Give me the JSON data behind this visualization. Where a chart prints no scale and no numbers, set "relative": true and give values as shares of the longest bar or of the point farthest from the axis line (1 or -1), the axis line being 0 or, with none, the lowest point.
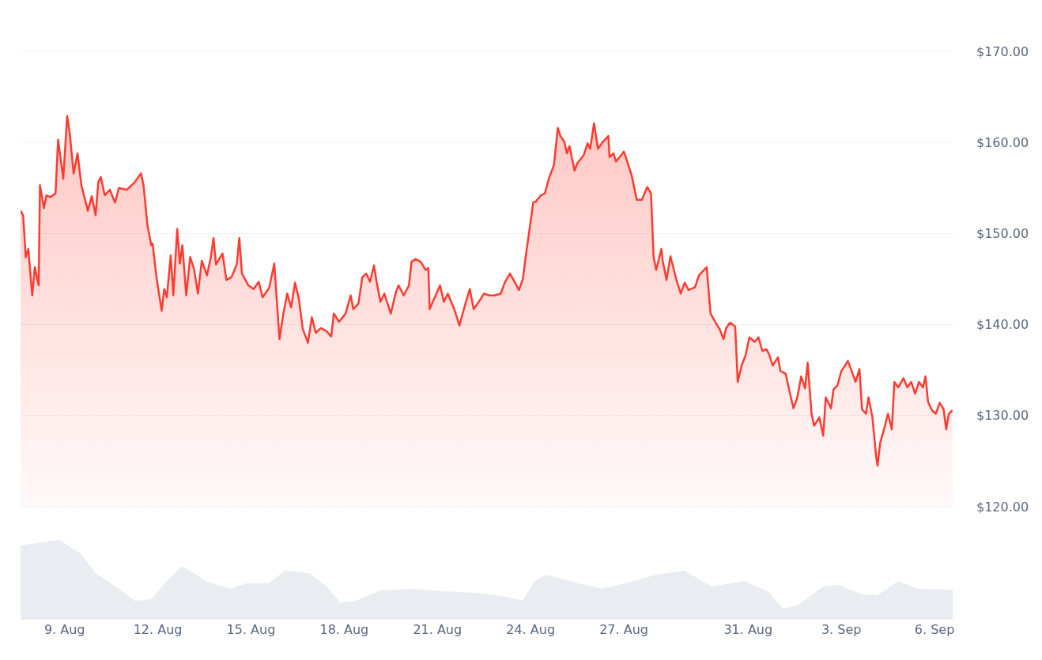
{
  "chart_data": [
    {
      "type": "area",
      "x": [
        "--08-07T14:00",
        "--08-07T16:00",
        "--08-07T18:00",
        "--08-07T20:00",
        "--08-07T23:00",
        "--08-08T01:00",
        "--08-08T04:00",
        "--08-08T05:00",
        "--08-08T08:00",
        "--08-08T10:00",
        "--08-08T13:00",
        "--08-08T17:00",
        "--08-08T19:00",
        "--08-08T22:00",
        "--08-08T23:00",
        "--08-09T02:00",
        "--08-09T04:00",
        "--08-09T07:00",
        "--08-09T10:00",
        "--08-09T13:00",
        "--08-09T18:00",
        "--08-09T21:00",
        "--08-10T00:00",
        "--08-10T02:00",
        "--08-10T04:00",
        "--08-10T07:00",
        "--08-10T11:00",
        "--08-10T15:00",
        "--08-10T18:00",
        "--08-11T00:00",
        "--08-11T06:00",
        "--08-11T11:00",
        "--08-11T13:00",
        "--08-11T16:00",
        "--08-11T19:00",
        "--08-11T20:00",
        "--08-11T23:00",
        "--08-12T03:00",
        "--08-12T05:00",
        "--08-12T07:00",
        "--08-12T10:00",
        "--08-12T12:00",
        "--08-12T15:00",
        "--08-12T17:00",
        "--08-12T19:00",
        "--08-12T22:00",
        "--08-13T01:00",
        "--08-13T04:00",
        "--08-13T07:00",
        "--08-13T10:00",
        "--08-13T14:00",
        "--08-13T17:00",
        "--08-13T19:00",
        "--08-13T21:00",
        "--08-14T02:00",
        "--08-14T05:00",
        "--08-14T09:00",
        "--08-14T13:00",
        "--08-14T15:00",
        "--08-14T17:00",
        "--08-14T22:00",
        "--08-15T02:00",
        "--08-15T06:00",
        "--08-15T09:00",
        "--08-15T14:00",
        "--08-15T18:00",
        "--08-15T22:00",
        "--08-16T01:00",
        "--08-16T04:00",
        "--08-16T07:00",
        "--08-16T10:00",
        "--08-16T13:00",
        "--08-16T16:00",
        "--08-16T20:00",
        "--08-16T23:00",
        "--08-17T02:00",
        "--08-17T06:00",
        "--08-17T10:00",
        "--08-17T14:00",
        "--08-17T16:00",
        "--08-17T20:00",
        "--08-18T01:00",
        "--08-18T05:00",
        "--08-18T07:00",
        "--08-18T11:00",
        "--08-18T14:00",
        "--08-18T17:00",
        "--08-18T20:00",
        "--08-18T23:00",
        "--08-19T01:00",
        "--08-19T04:00",
        "--08-19T07:00",
        "--08-19T12:00",
        "--08-19T16:00",
        "--08-19T18:00",
        "--08-19T22:00",
        "--08-20T02:00",
        "--08-20T04:00",
        "--08-20T07:00",
        "--08-20T11:00",
        "--08-20T15:00",
        "--08-20T17:00",
        "--08-20T18:00",
        "--08-20T22:00",
        "--08-21T02:00",
        "--08-21T05:00",
        "--08-21T08:00",
        "--08-21T13:00",
        "--08-21T17:00",
        "--08-21T22:00",
        "--08-22T01:00",
        "--08-22T04:00",
        "--08-22T08:00",
        "--08-22T12:00",
        "--08-22T16:00",
        "--08-22T20:00",
        "--08-23T01:00",
        "--08-23T04:00",
        "--08-23T08:00",
        "--08-23T12:00",
        "--08-23T15:00",
        "--08-23T18:00",
        "--08-23T21:00",
        "--08-24T00:00",
        "--08-24T02:00",
        "--08-24T04:00",
        "--08-24T08:00",
        "--08-24T11:00",
        "--08-24T14:00",
        "--08-24T18:00",
        "--08-24T21:00",
        "--08-24T23:00",
        "--08-25T02:00",
        "--08-25T04:00",
        "--08-25T06:00",
        "--08-25T10:00",
        "--08-25T12:00",
        "--08-25T17:00",
        "--08-25T20:00",
        "--08-25T22:00",
        "--08-26T01:00",
        "--08-26T04:00",
        "--08-26T08:00",
        "--08-26T12:00",
        "--08-26T13:00",
        "--08-26T16:00",
        "--08-26T18:00",
        "--08-26T22:00",
        "--08-27T00:00",
        "--08-27T02:00",
        "--08-27T06:00",
        "--08-27T10:00",
        "--08-27T14:00",
        "--08-27T18:00",
        "--08-27T21:00",
        "--08-27T23:00",
        "--08-28T01:00",
        "--08-28T05:00",
        "--08-28T06:00",
        "--08-28T09:00",
        "--08-28T12:00",
        "--08-28T17:00",
        "--08-28T20:00",
        "--08-28T23:00",
        "--08-29T02:00",
        "--08-29T07:00",
        "--08-29T10:00",
        "--08-29T16:00",
        "--08-29T19:00",
        "--08-29T23:00",
        "--08-30T02:00",
        "--08-30T05:00",
        "--08-30T07:00",
        "--08-30T10:00",
        "--08-30T14:00",
        "--08-30T16:00",
        "--08-30T19:00",
        "--08-30T22:00",
        "--08-31T01:00",
        "--08-31T05:00",
        "--08-31T08:00",
        "--08-31T11:00",
        "--08-31T14:00",
        "--08-31T16:00",
        "--08-31T19:00",
        "--08-31T23:00",
        "--09-01T01:00",
        "--09-01T05:00",
        "--09-01T07:00",
        "--09-01T11:00",
        "--09-01T14:00",
        "--09-01T17:00",
        "--09-01T20:00",
        "--09-01T22:00",
        "--09-02T01:00",
        "--09-02T03:00",
        "--09-02T07:00",
        "--09-02T10:00",
        "--09-02T12:00",
        "--09-02T16:00",
        "--09-02T18:00",
        "--09-02T21:00",
        "--09-03T00:00",
        "--09-03T03:00",
        "--09-03T05:00",
        "--09-03T08:00",
        "--09-03T11:00",
        "--09-03T14:00",
        "--09-03T16:00",
        "--09-03T19:00",
        "--09-03T21:00",
        "--09-04T00:00",
        "--09-04T03:00",
        "--09-04T04:00",
        "--09-04T06:00",
        "--09-04T09:00",
        "--09-04T12:00",
        "--09-04T15:00",
        "--09-04T17:00",
        "--09-04T20:00",
        "--09-05T00:00",
        "--09-05T03:00",
        "--09-05T06:00",
        "--09-05T09:00",
        "--09-05T12:00",
        "--09-05T15:00",
        "--09-05T17:00",
        "--09-05T19:00",
        "--09-05T22:00",
        "--09-06T01:00",
        "--09-06T04:00",
        "--09-06T07:00",
        "--09-06T09:00",
        "--09-06T11:00",
        "--09-06T14:00"
      ],
      "series": [
        {
          "color": "#ff3b30",
          "values": [
            152.5,
            152,
            147.4,
            148.3,
            143.2,
            146.3,
            144.3,
            155.3,
            152.8,
            154.2,
            154,
            154.4,
            160.3,
            157.1,
            156,
            162.9,
            161,
            156.6,
            158.8,
            155.3,
            152.5,
            154.1,
            152,
            155.6,
            156.2,
            154.2,
            154.8,
            153.4,
            155,
            154.8,
            155.6,
            156.6,
            155.3,
            150.9,
            148.7,
            148.9,
            145.2,
            141.5,
            143.9,
            143,
            147.6,
            143.2,
            150.5,
            146.7,
            148.7,
            143.2,
            147.4,
            146.1,
            143.4,
            147,
            145.4,
            147.4,
            149.5,
            146.6,
            147.8,
            144.9,
            145.2,
            146.6,
            149.5,
            145.6,
            144.3,
            143.9,
            144.7,
            143,
            144,
            146.7,
            138.4,
            141.2,
            143.4,
            141.9,
            144.6,
            142.8,
            139.5,
            138,
            140.8,
            139.1,
            139.6,
            139.3,
            138.7,
            141.2,
            140.3,
            141.2,
            143.2,
            141.7,
            142.3,
            145.2,
            145.6,
            144.7,
            146.5,
            144.7,
            142.5,
            143.4,
            141.2,
            143.6,
            144.3,
            143.2,
            144.3,
            146.9,
            147.2,
            146.9,
            146,
            146.2,
            141.7,
            143,
            144.3,
            142.5,
            143.4,
            141.7,
            139.9,
            142.5,
            143.9,
            141.7,
            142.5,
            143.4,
            143.2,
            143.2,
            143.4,
            144.6,
            145.6,
            144.6,
            143.8,
            145,
            148.3,
            151.3,
            153.4,
            153.5,
            154.2,
            154.4,
            156,
            157.5,
            161.6,
            160.7,
            160.1,
            158.8,
            159.6,
            156.9,
            157.7,
            158.6,
            159.9,
            159.3,
            162.1,
            159.3,
            160.1,
            160.7,
            158.4,
            158.8,
            157.9,
            158.6,
            159,
            158.2,
            156.4,
            153.7,
            153.7,
            155.1,
            154.4,
            147.4,
            146,
            148.3,
            147,
            144.9,
            147.5,
            144.7,
            143.4,
            144.6,
            143.8,
            144.1,
            145.4,
            146.3,
            141.2,
            140.2,
            139.5,
            138.4,
            139.6,
            140.2,
            139.8,
            133.7,
            135.5,
            136.6,
            138.6,
            138.1,
            138.6,
            137.1,
            137.3,
            136.8,
            135.5,
            136.4,
            134.9,
            134.6,
            133.3,
            130.8,
            132,
            134.3,
            133,
            135.8,
            130.2,
            128.9,
            129.8,
            127.8,
            132,
            130.8,
            132.9,
            133.3,
            134.9,
            135.5,
            136,
            134.9,
            133.7,
            135.1,
            130.7,
            130.2,
            132,
            129.8,
            125.4,
            124.5,
            127,
            128.5,
            130.2,
            128.5,
            133.7,
            133.1,
            134.1,
            133.1,
            133.7,
            132.4,
            133.7,
            133.1,
            134.3,
            131.5,
            130.6,
            130.2,
            131.4,
            130.7,
            128.5,
            130.2,
            130.6
          ]
        }
      ],
      "xlim": [
        "--08-07T14:00",
        "--09-06T14:00"
      ],
      "ylim": [
        120,
        170
      ],
      "yticks": [
        {
          "value": 120,
          "label": "$120.00"
        },
        {
          "value": 130,
          "label": "$130.00"
        },
        {
          "value": 140,
          "label": "$140.00"
        },
        {
          "value": 150,
          "label": "$150.00"
        },
        {
          "value": 160,
          "label": "$160.00"
        },
        {
          "value": 170,
          "label": "$170.00"
        }
      ],
      "grid": "y",
      "tick_labels": "y"
    },
    {
      "type": "area",
      "relative": true,
      "x": [
        "--08-07T14:00",
        "--08-08T20:00",
        "--08-09T12:00",
        "--08-10T00:00",
        "--08-10T18:00",
        "--08-11T06:00",
        "--08-11T19:00",
        "--08-12T07:00",
        "--08-12T19:00",
        "--08-13T13:00",
        "--08-14T08:00",
        "--08-14T20:00",
        "--08-15T14:00",
        "--08-16T02:00",
        "--08-16T21:00",
        "--08-17T09:00",
        "--08-17T21:00",
        "--08-18T09:00",
        "--08-19T04:00",
        "--08-20T04:00",
        "--08-21T05:00",
        "--08-22T05:00",
        "--08-23T05:00",
        "--08-23T18:00",
        "--08-24T03:00",
        "--08-24T12:00",
        "--08-25T06:00",
        "--08-26T07:00",
        "--08-27T01:00",
        "--08-28T01:00",
        "--08-28T23:00",
        "--08-29T20:00",
        "--08-30T21:00",
        "--08-31T15:00",
        "--09-01T03:00",
        "--09-01T15:00",
        "--09-02T10:00",
        "--09-02T22:00",
        "--09-03T16:00",
        "--09-04T04:00",
        "--09-04T20:00",
        "--09-05T11:00",
        "--09-06T14:00"
      ],
      "series": [
        {
          "color": "#e9edf1",
          "values": [
            0.93,
            1,
            0.83,
            0.58,
            0.38,
            0.23,
            0.25,
            0.48,
            0.67,
            0.48,
            0.38,
            0.45,
            0.45,
            0.61,
            0.58,
            0.43,
            0.21,
            0.23,
            0.36,
            0.38,
            0.35,
            0.33,
            0.28,
            0.23,
            0.48,
            0.56,
            0.48,
            0.38,
            0.45,
            0.56,
            0.61,
            0.41,
            0.48,
            0.35,
            0.13,
            0.18,
            0.41,
            0.43,
            0.31,
            0.3,
            0.48,
            0.38,
            0.37
          ]
        }
      ],
      "xlim": [
        "--08-07T14:00",
        "--09-06T14:00"
      ],
      "xticks": [
        {
          "value": "--08-09",
          "label": "9. Aug"
        },
        {
          "value": "--08-12",
          "label": "12. Aug"
        },
        {
          "value": "--08-15",
          "label": "15. Aug"
        },
        {
          "value": "--08-18",
          "label": "18. Aug"
        },
        {
          "value": "--08-21",
          "label": "21. Aug"
        },
        {
          "value": "--08-24",
          "label": "24. Aug"
        },
        {
          "value": "--08-27",
          "label": "27. Aug"
        },
        {
          "value": "--08-31",
          "label": "31. Aug"
        },
        {
          "value": "--09-03",
          "label": "3. Sep"
        },
        {
          "value": "--09-06",
          "label": "6. Sep"
        }
      ],
      "grid": false,
      "tick_labels": "x"
    }
  ]
}
